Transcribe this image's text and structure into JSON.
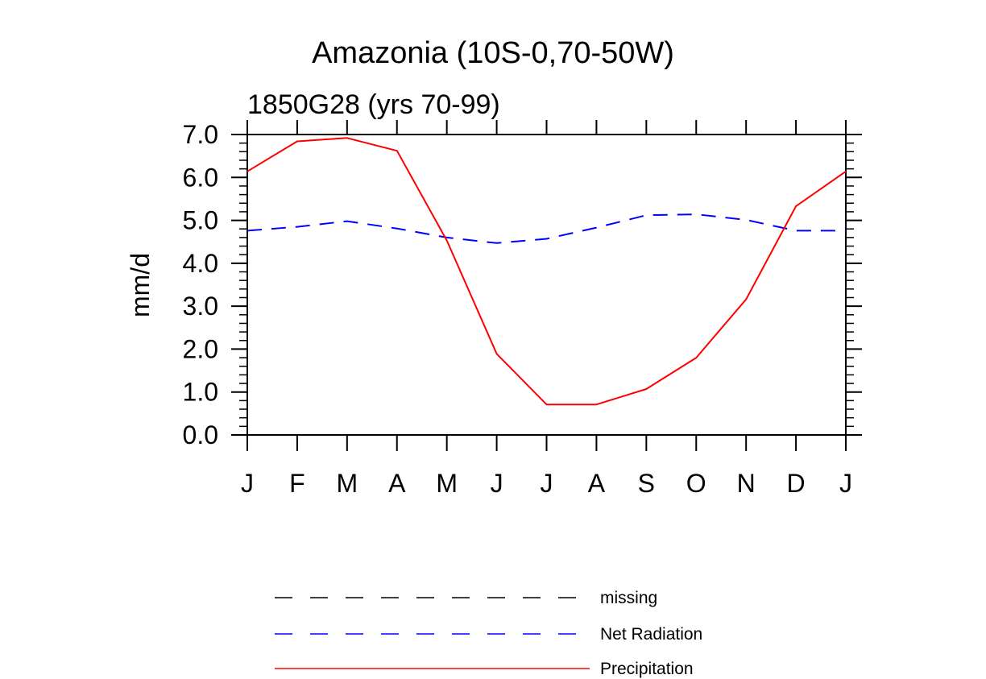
{
  "chart_data": {
    "type": "line",
    "title": "Amazonia (10S-0,70-50W)",
    "subtitle": "1850G28 (yrs 70-99)",
    "xlabel": "",
    "ylabel": "mm/d",
    "categories": [
      "J",
      "F",
      "M",
      "A",
      "M",
      "J",
      "J",
      "A",
      "S",
      "O",
      "N",
      "D",
      "J"
    ],
    "ylim": [
      0,
      7
    ],
    "yticks": [
      "0.0",
      "1.0",
      "2.0",
      "3.0",
      "4.0",
      "5.0",
      "6.0",
      "7.0"
    ],
    "series": [
      {
        "name": "Net Radiation",
        "color": "#0000ff",
        "style": "dashed",
        "values": [
          4.76,
          4.85,
          4.98,
          4.81,
          4.6,
          4.47,
          4.57,
          4.83,
          5.12,
          5.14,
          5.01,
          4.76,
          4.76
        ]
      },
      {
        "name": "Precipitation",
        "color": "#ff0000",
        "style": "solid",
        "values": [
          6.14,
          6.84,
          6.92,
          6.62,
          4.53,
          1.89,
          0.71,
          0.71,
          1.07,
          1.8,
          3.16,
          5.33,
          6.14
        ]
      }
    ],
    "legend": [
      {
        "label": "missing",
        "color": "#000000",
        "style": "dashed"
      },
      {
        "label": "Net Radiation",
        "color": "#0000ff",
        "style": "dashed"
      },
      {
        "label": "Precipitation",
        "color": "#ff0000",
        "style": "solid"
      }
    ]
  }
}
